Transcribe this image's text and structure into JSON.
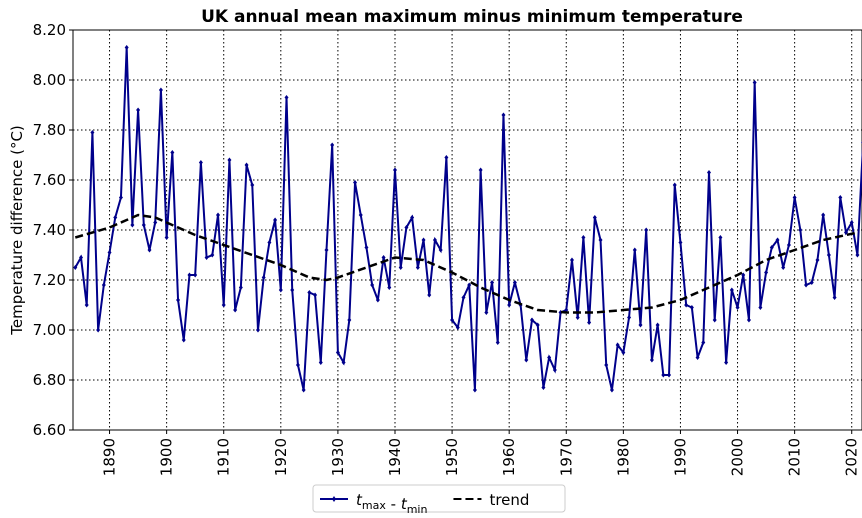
{
  "chart_data": {
    "type": "line",
    "title": "UK annual mean maximum minus minimum temperature",
    "y_label": "Temperature difference (°C)",
    "x": [
      1884,
      1885,
      1886,
      1887,
      1888,
      1889,
      1890,
      1891,
      1892,
      1893,
      1894,
      1895,
      1896,
      1897,
      1898,
      1899,
      1900,
      1901,
      1902,
      1903,
      1904,
      1905,
      1906,
      1907,
      1908,
      1909,
      1910,
      1911,
      1912,
      1913,
      1914,
      1915,
      1916,
      1917,
      1918,
      1919,
      1920,
      1921,
      1922,
      1923,
      1924,
      1925,
      1926,
      1927,
      1928,
      1929,
      1930,
      1931,
      1932,
      1933,
      1934,
      1935,
      1936,
      1937,
      1938,
      1939,
      1940,
      1941,
      1942,
      1943,
      1944,
      1945,
      1946,
      1947,
      1948,
      1949,
      1950,
      1951,
      1952,
      1953,
      1954,
      1955,
      1956,
      1957,
      1958,
      1959,
      1960,
      1961,
      1962,
      1963,
      1964,
      1965,
      1966,
      1967,
      1968,
      1969,
      1970,
      1971,
      1972,
      1973,
      1974,
      1975,
      1976,
      1977,
      1978,
      1979,
      1980,
      1981,
      1982,
      1983,
      1984,
      1985,
      1986,
      1987,
      1988,
      1989,
      1990,
      1991,
      1992,
      1993,
      1994,
      1995,
      1996,
      1997,
      1998,
      1999,
      2000,
      2001,
      2002,
      2003,
      2004,
      2005,
      2006,
      2007,
      2008,
      2009,
      2010,
      2011,
      2012,
      2013,
      2014,
      2015,
      2016,
      2017,
      2018,
      2019,
      2020,
      2021,
      2022
    ],
    "series": [
      {
        "name": "tmax - tmin",
        "color": "#00008b",
        "marker": true,
        "values": [
          7.25,
          7.29,
          7.1,
          7.79,
          7.0,
          7.18,
          7.31,
          7.45,
          7.53,
          8.13,
          7.42,
          7.88,
          7.42,
          7.32,
          7.43,
          7.96,
          7.37,
          7.71,
          7.12,
          6.96,
          7.22,
          7.22,
          7.67,
          7.29,
          7.3,
          7.46,
          7.1,
          7.68,
          7.08,
          7.17,
          7.66,
          7.58,
          7.0,
          7.21,
          7.35,
          7.44,
          7.16,
          7.93,
          7.16,
          6.86,
          6.76,
          7.15,
          7.14,
          6.87,
          7.32,
          7.74,
          6.91,
          6.87,
          7.04,
          7.59,
          7.46,
          7.33,
          7.18,
          7.12,
          7.29,
          7.17,
          7.64,
          7.25,
          7.41,
          7.45,
          7.25,
          7.36,
          7.14,
          7.36,
          7.32,
          7.69,
          7.04,
          7.01,
          7.13,
          7.18,
          6.76,
          7.64,
          7.07,
          7.19,
          6.95,
          7.86,
          7.1,
          7.19,
          7.1,
          6.88,
          7.04,
          7.02,
          6.77,
          6.89,
          6.84,
          7.07,
          7.08,
          7.28,
          7.05,
          7.37,
          7.03,
          7.45,
          7.36,
          6.86,
          6.76,
          6.94,
          6.91,
          7.05,
          7.32,
          7.02,
          7.4,
          6.88,
          7.02,
          6.82,
          6.82,
          7.58,
          7.35,
          7.1,
          7.09,
          6.89,
          6.95,
          7.63,
          7.04,
          7.37,
          6.87,
          7.16,
          7.09,
          7.22,
          7.04,
          7.99,
          7.09,
          7.23,
          7.33,
          7.36,
          7.25,
          7.34,
          7.53,
          7.4,
          7.18,
          7.19,
          7.28,
          7.46,
          7.3,
          7.13,
          7.53,
          7.39,
          7.43,
          7.3,
          7.75
        ]
      },
      {
        "name": "trend",
        "color": "#000000",
        "dashed": true,
        "x": [
          1884,
          1890,
          1895,
          1898,
          1900,
          1905,
          1910,
          1915,
          1920,
          1925,
          1928,
          1930,
          1935,
          1940,
          1945,
          1950,
          1955,
          1960,
          1965,
          1970,
          1975,
          1980,
          1985,
          1990,
          1995,
          2000,
          2005,
          2010,
          2015,
          2021
        ],
        "values": [
          7.37,
          7.41,
          7.46,
          7.45,
          7.43,
          7.38,
          7.34,
          7.3,
          7.26,
          7.21,
          7.2,
          7.21,
          7.25,
          7.29,
          7.28,
          7.23,
          7.17,
          7.12,
          7.08,
          7.07,
          7.07,
          7.08,
          7.09,
          7.12,
          7.17,
          7.22,
          7.28,
          7.32,
          7.36,
          7.39
        ]
      }
    ],
    "xlim": [
      1883.6,
      2021.8
    ],
    "xticks": [
      1890,
      1900,
      1910,
      1920,
      1930,
      1940,
      1950,
      1960,
      1970,
      1980,
      1990,
      2000,
      2010,
      2020
    ],
    "ylim": [
      6.6,
      8.2
    ],
    "yticks": [
      {
        "value": 6.6,
        "label": "6.60"
      },
      {
        "value": 6.8,
        "label": "6.80"
      },
      {
        "value": 7.0,
        "label": "7.00"
      },
      {
        "value": 7.2,
        "label": "7.20"
      },
      {
        "value": 7.4,
        "label": "7.40"
      },
      {
        "value": 7.6,
        "label": "7.60"
      },
      {
        "value": 7.8,
        "label": "7.80"
      },
      {
        "value": 8.0,
        "label": "8.00"
      },
      {
        "value": 8.2,
        "label": "8.20"
      }
    ],
    "grid": true,
    "legend": "bottom"
  }
}
